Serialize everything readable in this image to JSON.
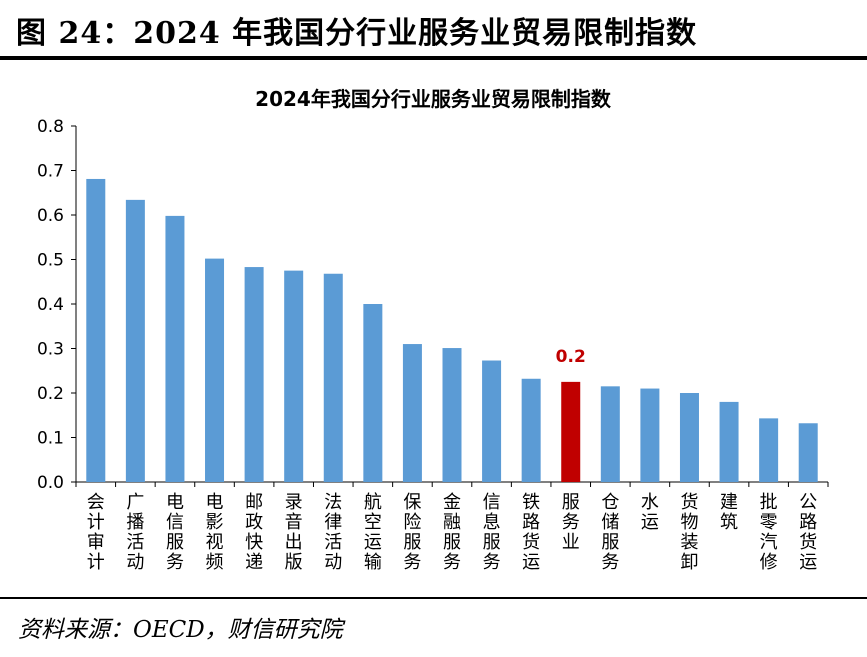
{
  "figure": {
    "title": "图 24：2024 年我国分行业服务业贸易限制指数",
    "source": "资料来源：OECD，财信研究院"
  },
  "colors": {
    "bar": "#5B9BD5",
    "highlight": "#C00000",
    "highlight_label": "#C00000",
    "axis": "#000000",
    "text": "#000000"
  },
  "chart_data": {
    "type": "bar",
    "title": "2024年我国分行业服务业贸易限制指数",
    "xlabel": "",
    "ylabel": "",
    "ylim": [
      0,
      0.8
    ],
    "y_ticks": [
      "0.0",
      "0.1",
      "0.2",
      "0.3",
      "0.4",
      "0.5",
      "0.6",
      "0.7",
      "0.8"
    ],
    "grid": false,
    "legend": "none",
    "categories": [
      "会计审计",
      "广播活动",
      "电信服务",
      "电影视频",
      "邮政快递",
      "录音出版",
      "法律活动",
      "航空运输",
      "保险服务",
      "金融服务",
      "信息服务",
      "铁路货运",
      "服务业",
      "仓储服务",
      "水运",
      "货物装卸",
      "建筑",
      "批零汽修",
      "公路货运"
    ],
    "values": [
      0.681,
      0.634,
      0.598,
      0.502,
      0.483,
      0.475,
      0.468,
      0.4,
      0.31,
      0.301,
      0.273,
      0.232,
      0.225,
      0.215,
      0.21,
      0.2,
      0.18,
      0.143,
      0.132
    ],
    "highlight_category": "服务业",
    "annotations": [
      {
        "category": "服务业",
        "text": "0.2"
      }
    ]
  }
}
